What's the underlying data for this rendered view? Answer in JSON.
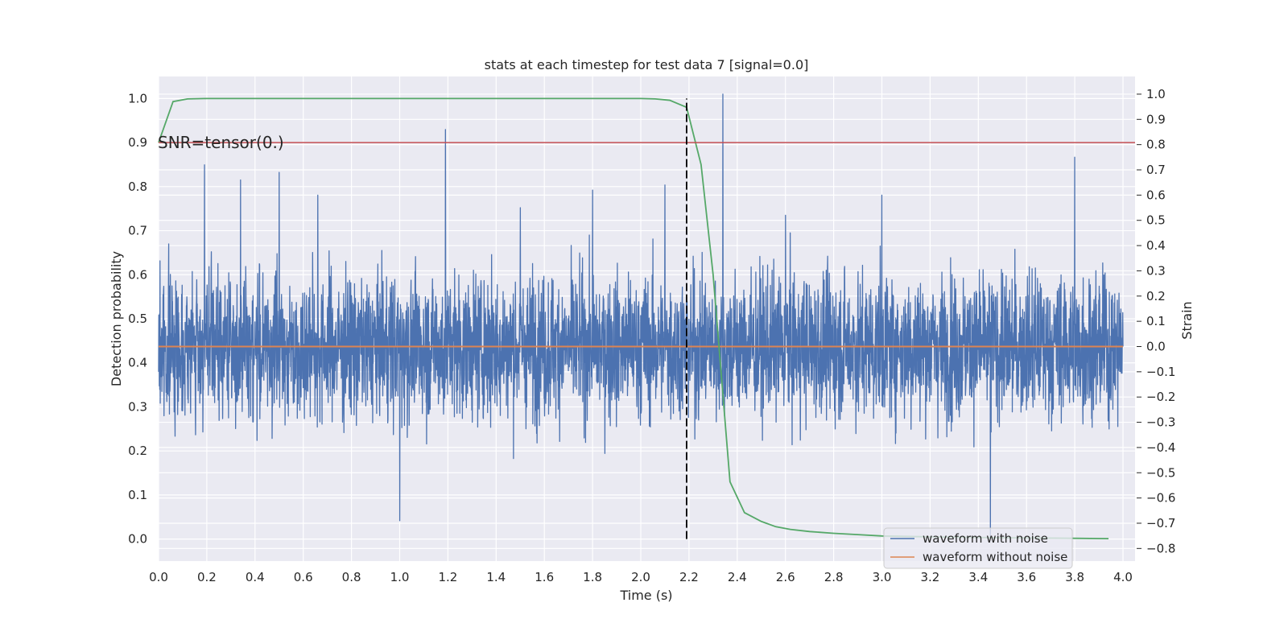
{
  "chart_data": {
    "type": "line",
    "title": "stats at each timestep for test data 7 [signal=0.0]",
    "xlabel": "Time (s)",
    "ylabel_left": "Detection probability",
    "ylabel_right": "Strain",
    "xlim": [
      0.0,
      4.05
    ],
    "ylim_left": [
      -0.05,
      1.05
    ],
    "ylim_right": [
      -0.85,
      1.07
    ],
    "x_ticks": [
      "0.0",
      "0.2",
      "0.4",
      "0.6",
      "0.8",
      "1.0",
      "1.2",
      "1.4",
      "1.6",
      "1.8",
      "2.0",
      "2.2",
      "2.4",
      "2.6",
      "2.8",
      "3.0",
      "3.2",
      "3.4",
      "3.6",
      "3.8",
      "4.0"
    ],
    "y_ticks_left": [
      "0.0",
      "0.1",
      "0.2",
      "0.3",
      "0.4",
      "0.5",
      "0.6",
      "0.7",
      "0.8",
      "0.9",
      "1.0"
    ],
    "y_ticks_right": [
      "−0.8",
      "−0.7",
      "−0.6",
      "−0.5",
      "−0.4",
      "−0.3",
      "−0.2",
      "−0.1",
      "0.0",
      "0.1",
      "0.2",
      "0.3",
      "0.4",
      "0.5",
      "0.6",
      "0.7",
      "0.8",
      "0.9",
      "1.0"
    ],
    "grid": true,
    "legend_placement": "lower-right",
    "annotation": "SNR=tensor(0.)",
    "colors": {
      "background": "#eaeaf2",
      "grid": "#ffffff",
      "noise": "#4c72b0",
      "clean": "#dd8452",
      "probability": "#55a868",
      "threshold": "#c44e52",
      "marker": "#000000"
    },
    "series": [
      {
        "name": "waveform with noise",
        "axis": "right",
        "style": "noisy strain, std ~0.2, range about -0.77 to 1.0",
        "sample_values": {
          "x": [
            0.0,
            0.19,
            0.34,
            0.5,
            0.66,
            1.0,
            1.19,
            1.5,
            1.8,
            2.1,
            2.34,
            2.6,
            3.0,
            3.45,
            3.8,
            4.0
          ],
          "y": [
            -0.1,
            0.72,
            0.66,
            0.69,
            0.6,
            -0.69,
            0.86,
            0.55,
            0.62,
            0.64,
            1.0,
            0.52,
            0.6,
            -0.76,
            0.75,
            0.0
          ]
        }
      },
      {
        "name": "waveform without noise",
        "axis": "right",
        "x": [
          0.0,
          4.0
        ],
        "y": [
          0.0,
          0.0
        ]
      },
      {
        "name": "detection probability",
        "axis": "left",
        "x": [
          0.0,
          0.06,
          0.12,
          0.2,
          0.5,
          1.0,
          1.5,
          2.0,
          2.06,
          2.12,
          2.19,
          2.25,
          2.3,
          2.37,
          2.43,
          2.5,
          2.56,
          2.62,
          2.7,
          2.8,
          2.9,
          3.0,
          3.2,
          3.5,
          3.75,
          3.94
        ],
        "y": [
          0.9,
          0.993,
          0.999,
          1.0,
          1.0,
          1.0,
          1.0,
          1.0,
          0.999,
          0.996,
          0.98,
          0.85,
          0.6,
          0.13,
          0.06,
          0.04,
          0.028,
          0.022,
          0.017,
          0.013,
          0.01,
          0.007,
          0.005,
          0.003,
          0.002,
          0.001
        ]
      },
      {
        "name": "threshold",
        "axis": "left",
        "y_value": 0.9
      },
      {
        "name": "marker",
        "axis": "left",
        "x_value": 2.19,
        "y_range": [
          0.0,
          1.0
        ]
      }
    ]
  }
}
